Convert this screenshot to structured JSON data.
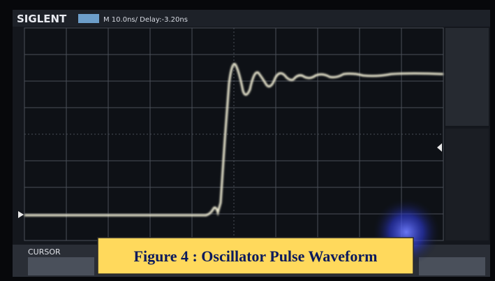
{
  "header": {
    "brand": "SIGLENT",
    "timebase": "M 10.0ns/ Delay:-3.20ns"
  },
  "menu": {
    "label": "CURSOR"
  },
  "caption": "Figure 4 : Oscillator Pulse Waveform"
}
